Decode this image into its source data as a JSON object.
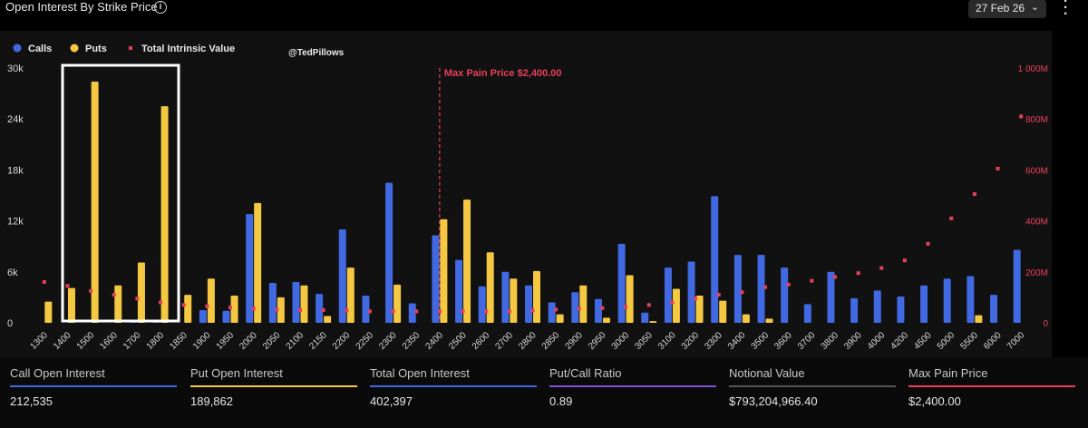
{
  "header": {
    "title": "Open Interest By Strike Price",
    "date": "27 Feb 26"
  },
  "watermark": "@TedPillows",
  "colors": {
    "calls": "#4169e1",
    "puts": "#f5c842",
    "intrinsic": "#e8405a",
    "maxpain": "#e8405a"
  },
  "chart_data": {
    "type": "bar",
    "title": "Open Interest By Strike Price",
    "legend": [
      "Calls",
      "Puts",
      "Total Intrinsic Value"
    ],
    "legend_position": "top-left",
    "categories": [
      "1300",
      "1400",
      "1500",
      "1600",
      "1700",
      "1800",
      "1850",
      "1900",
      "1950",
      "2000",
      "2050",
      "2100",
      "2150",
      "2200",
      "2250",
      "2300",
      "2350",
      "2400",
      "2500",
      "2600",
      "2700",
      "2800",
      "2850",
      "2900",
      "2950",
      "3000",
      "3050",
      "3100",
      "3200",
      "3300",
      "3400",
      "3500",
      "3600",
      "3700",
      "3800",
      "3900",
      "4000",
      "4200",
      "4500",
      "5000",
      "5500",
      "6000",
      "7000"
    ],
    "series": [
      {
        "name": "Calls",
        "axis": "left",
        "values": [
          0,
          0,
          0,
          0,
          100,
          300,
          0,
          1500,
          1400,
          12800,
          4700,
          4800,
          3400,
          11000,
          3200,
          16500,
          2300,
          10300,
          7400,
          4300,
          6000,
          4400,
          2400,
          3600,
          2800,
          9300,
          1200,
          6500,
          7200,
          14900,
          8000,
          8000,
          6500,
          2200,
          6000,
          2900,
          3800,
          3100,
          4400,
          5200,
          5500,
          3300,
          8600
        ]
      },
      {
        "name": "Puts",
        "axis": "left",
        "values": [
          2500,
          4100,
          28400,
          4400,
          7100,
          25500,
          3300,
          5200,
          3200,
          14100,
          3000,
          4400,
          800,
          6500,
          0,
          4500,
          0,
          12200,
          14500,
          8300,
          5200,
          6100,
          1000,
          4400,
          600,
          5600,
          200,
          4000,
          3200,
          2600,
          1000,
          500,
          0,
          0,
          0,
          0,
          0,
          0,
          0,
          0,
          900,
          0,
          0
        ]
      },
      {
        "name": "Total Intrinsic Value",
        "axis": "right",
        "values": [
          160,
          145,
          125,
          110,
          95,
          80,
          70,
          65,
          60,
          55,
          52,
          50,
          50,
          48,
          45,
          45,
          45,
          45,
          45,
          45,
          45,
          48,
          52,
          55,
          58,
          62,
          70,
          80,
          95,
          110,
          120,
          140,
          150,
          165,
          180,
          195,
          215,
          245,
          310,
          410,
          505,
          605,
          810
        ]
      }
    ],
    "y_left": {
      "min": 0,
      "max": 30000,
      "ticks": [
        "0",
        "6k",
        "12k",
        "18k",
        "24k",
        "30k"
      ]
    },
    "y_right": {
      "min": 0,
      "max": 1000,
      "unit": "M",
      "ticks": [
        "0",
        "200M",
        "400M",
        "600M",
        "800M",
        "1 000M"
      ]
    },
    "annotation": {
      "label": "Max Pain Price $2,400.00",
      "category": "2400"
    }
  },
  "stats": [
    {
      "label": "Call Open Interest",
      "value": "212,535",
      "color": "#4169e1"
    },
    {
      "label": "Put Open Interest",
      "value": "189,862",
      "color": "#f5c842"
    },
    {
      "label": "Total Open Interest",
      "value": "402,397",
      "color": "#4169e1"
    },
    {
      "label": "Put/Call Ratio",
      "value": "0.89",
      "color": "#7b4fd8"
    },
    {
      "label": "Notional Value",
      "value": "$793,204,966.40",
      "color": "#555555"
    },
    {
      "label": "Max Pain Price",
      "value": "$2,400.00",
      "color": "#e8405a"
    }
  ]
}
